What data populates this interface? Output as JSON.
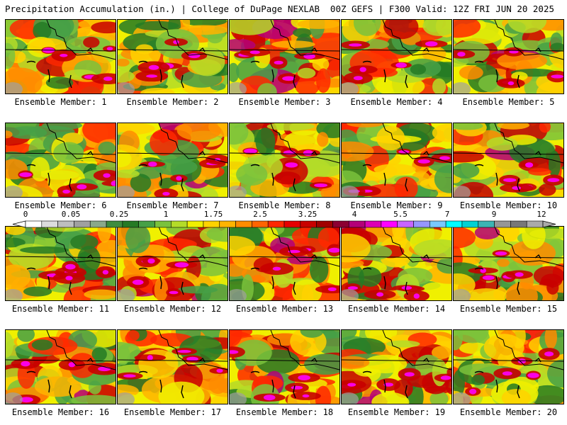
{
  "header": {
    "title_left": "Precipitation Accumulation (in.) | College of DuPage NEXLAB",
    "title_right": "00Z GEFS | F300 Valid: 12Z FRI JUN 20 2025"
  },
  "panels": [
    {
      "label": "Ensemble Member: 1"
    },
    {
      "label": "Ensemble Member: 2"
    },
    {
      "label": "Ensemble Member: 3"
    },
    {
      "label": "Ensemble Member: 4"
    },
    {
      "label": "Ensemble Member: 5"
    },
    {
      "label": "Ensemble Member: 6"
    },
    {
      "label": "Ensemble Member: 7"
    },
    {
      "label": "Ensemble Member: 8"
    },
    {
      "label": "Ensemble Member: 9"
    },
    {
      "label": "Ensemble Member: 10"
    },
    {
      "label": "Ensemble Member: 11"
    },
    {
      "label": "Ensemble Member: 12"
    },
    {
      "label": "Ensemble Member: 13"
    },
    {
      "label": "Ensemble Member: 14"
    },
    {
      "label": "Ensemble Member: 15"
    },
    {
      "label": "Ensemble Member: 16"
    },
    {
      "label": "Ensemble Member: 17"
    },
    {
      "label": "Ensemble Member: 18"
    },
    {
      "label": "Ensemble Member: 19"
    },
    {
      "label": "Ensemble Member: 20"
    }
  ],
  "colorbar": {
    "tick_labels": [
      "0",
      "0.05",
      "0.25",
      "1",
      "1.75",
      "2.5",
      "3.25",
      "4",
      "5.5",
      "7",
      "9",
      "12"
    ],
    "colors": [
      "#ffffff",
      "#dcdcdc",
      "#bebebe",
      "#a0a0a0",
      "#8aa88a",
      "#3e8c3e",
      "#257a25",
      "#46a046",
      "#7ac23c",
      "#b4dc28",
      "#f0f000",
      "#ffd200",
      "#ffb400",
      "#ff8c00",
      "#ff6400",
      "#ff2800",
      "#e60000",
      "#c80000",
      "#a00000",
      "#8c0032",
      "#b40078",
      "#dc00b4",
      "#ff00ff",
      "#c864ff",
      "#9696ff",
      "#78c8ff",
      "#00ffff",
      "#00d2d2",
      "#3cb4b4",
      "#969696",
      "#787878",
      "#aaaaaa"
    ]
  }
}
